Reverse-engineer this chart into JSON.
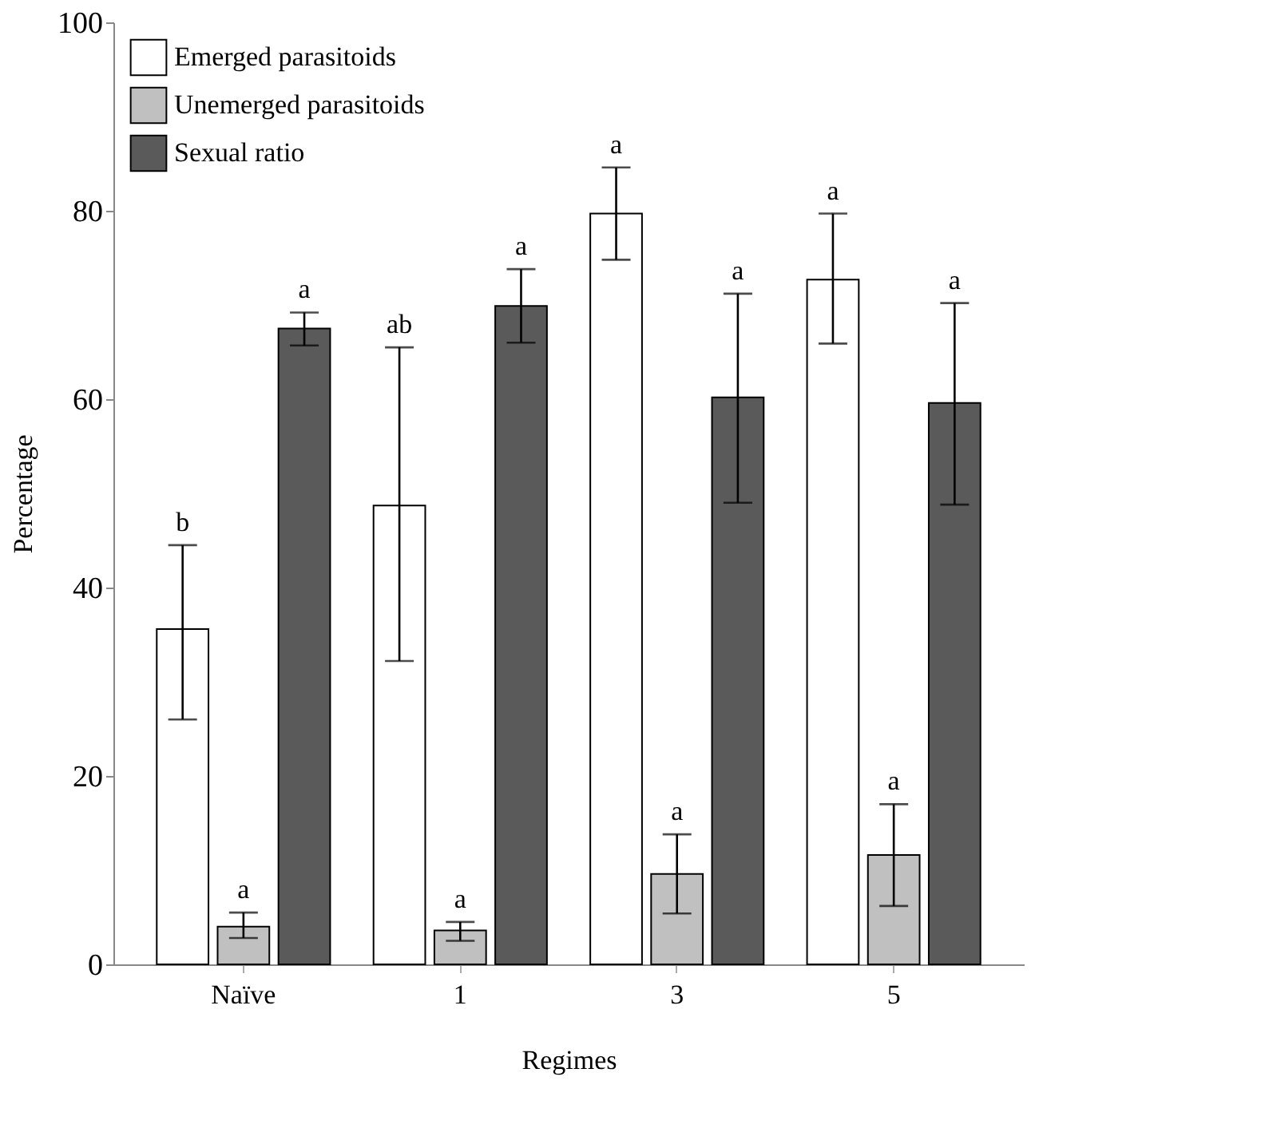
{
  "chart_data": {
    "type": "bar",
    "xlabel": "Regimes",
    "ylabel": "Percentage",
    "categories": [
      "Naïve",
      "1",
      "3",
      "5"
    ],
    "series": [
      {
        "name": "Emerged parasitoids",
        "color": "#ffffff",
        "values": [
          35.6,
          48.7,
          79.7,
          72.7
        ],
        "errors": [
          [
            26.0,
            44.5
          ],
          [
            32.2,
            65.5
          ],
          [
            74.8,
            84.6
          ],
          [
            65.9,
            79.7
          ]
        ]
      },
      {
        "name": "Unemerged parasitoids",
        "color": "#c0c0c0",
        "values": [
          4.0,
          3.6,
          9.6,
          11.6
        ],
        "errors": [
          [
            2.8,
            5.5
          ],
          [
            2.5,
            4.5
          ],
          [
            5.4,
            13.8
          ],
          [
            6.2,
            17.0
          ]
        ]
      },
      {
        "name": "Sexual ratio",
        "color": "#5a5a5a",
        "values": [
          67.5,
          69.9,
          60.2,
          59.6
        ],
        "errors": [
          [
            65.7,
            69.2
          ],
          [
            66.0,
            73.8
          ],
          [
            49.0,
            71.2
          ],
          [
            48.8,
            70.2
          ]
        ]
      }
    ],
    "annotations": [
      "b",
      "a",
      "a",
      "ab",
      "a",
      "a",
      "a",
      "a",
      "a",
      "a",
      "a",
      "a"
    ],
    "ylim": [
      0,
      100
    ],
    "yticks": [
      0,
      20,
      40,
      60,
      80,
      100
    ],
    "grid": false,
    "legend": "top left"
  }
}
